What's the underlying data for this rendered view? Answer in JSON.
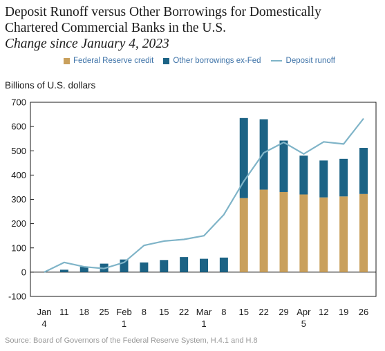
{
  "colors": {
    "fed": "#c9a05c",
    "other": "#1c6385",
    "runoff": "#7fb4c8"
  },
  "chart_data": {
    "type": "bar",
    "title_lines": [
      "Deposit Runoff versus Other Borrowings for Domestically",
      "Chartered Commercial Banks in the U.S."
    ],
    "subtitle": "Change since January 4, 2023",
    "ylabel": "Billions of U.S. dollars",
    "ylim": [
      -100,
      700
    ],
    "yticks": [
      -100,
      0,
      100,
      200,
      300,
      400,
      500,
      600,
      700
    ],
    "categories": [
      {
        "label": "Jan",
        "sub": "4"
      },
      {
        "label": "11",
        "sub": ""
      },
      {
        "label": "18",
        "sub": ""
      },
      {
        "label": "25",
        "sub": ""
      },
      {
        "label": "Feb",
        "sub": "1"
      },
      {
        "label": "8",
        "sub": ""
      },
      {
        "label": "15",
        "sub": ""
      },
      {
        "label": "22",
        "sub": ""
      },
      {
        "label": "Mar",
        "sub": "1"
      },
      {
        "label": "8",
        "sub": ""
      },
      {
        "label": "15",
        "sub": ""
      },
      {
        "label": "22",
        "sub": ""
      },
      {
        "label": "29",
        "sub": ""
      },
      {
        "label": "Apr",
        "sub": "5"
      },
      {
        "label": "12",
        "sub": ""
      },
      {
        "label": "19",
        "sub": ""
      },
      {
        "label": "26",
        "sub": ""
      }
    ],
    "series": [
      {
        "name": "Federal Reserve credit",
        "kind": "stacked-bar",
        "values": [
          0,
          0,
          0,
          0,
          0,
          0,
          0,
          0,
          0,
          0,
          305,
          340,
          330,
          320,
          308,
          312,
          322
        ]
      },
      {
        "name": "Other borrowings ex-Fed",
        "kind": "stacked-bar",
        "values": [
          0,
          10,
          22,
          35,
          52,
          40,
          50,
          62,
          55,
          60,
          330,
          290,
          212,
          160,
          152,
          155,
          190
        ]
      },
      {
        "name": "Deposit runoff",
        "kind": "line",
        "values": [
          0,
          40,
          22,
          15,
          40,
          110,
          128,
          135,
          150,
          237,
          375,
          492,
          535,
          487,
          537,
          528,
          633
        ]
      }
    ],
    "legend_position": "top",
    "grid": false
  },
  "source": "Source: Board of Governors of the Federal Reserve System, H.4.1 and H.8"
}
